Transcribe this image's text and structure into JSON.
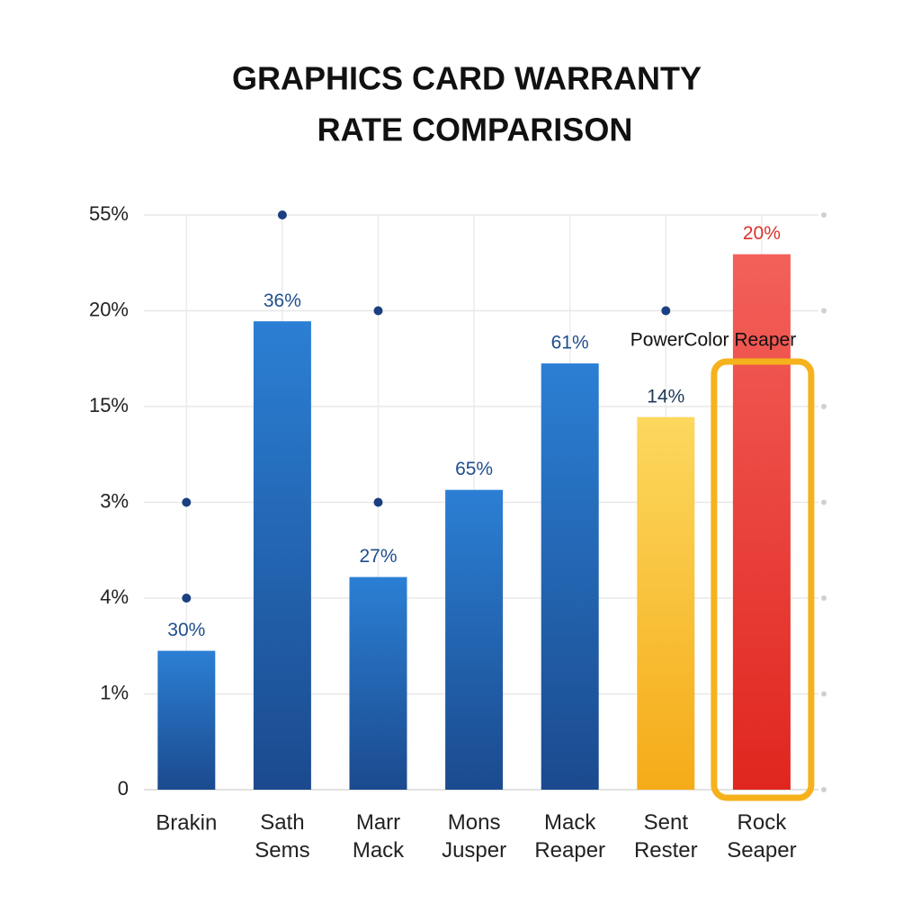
{
  "chart_data": {
    "type": "bar",
    "title": [
      "GRAPHICS CARD WARRANTY",
      "RATE COMPARISON"
    ],
    "categories": [
      "Brakin",
      "Sath Sems",
      "Marr Mack",
      "Mons Jusper",
      "Mack Reaper",
      "Sent Rester",
      "Rock Seaper"
    ],
    "values": [
      1.45,
      4.89,
      2.22,
      3.13,
      4.45,
      3.89,
      5.59
    ],
    "bar_labels": [
      "30%",
      "36%",
      "27%",
      "65%",
      "61%",
      "14%",
      "20%"
    ],
    "colors": [
      [
        "#2b7fd4",
        "#1b4a8e"
      ],
      [
        "#2b7fd4",
        "#1b4a8e"
      ],
      [
        "#2b7fd4",
        "#1b4a8e"
      ],
      [
        "#2b7fd4",
        "#1b4a8e"
      ],
      [
        "#2b7fd4",
        "#1b4a8e"
      ],
      [
        "#fcd85e",
        "#f5ab18"
      ],
      [
        "#f3605a",
        "#e0261f"
      ]
    ],
    "label_colors": [
      "#1f4e8c",
      "#1f4e8c",
      "#1f4e8c",
      "#1f4e8c",
      "#1f4e8c",
      "#1f3a5a",
      "#d9322b"
    ],
    "points": [
      [
        3,
        6,
        5,
        null,
        null,
        5,
        null
      ],
      [
        2,
        null,
        3,
        null,
        null,
        null,
        null
      ]
    ],
    "point_color": "#1b3f80",
    "ylim": [
      0,
      6
    ],
    "yticks": [
      {
        "value": 0,
        "label": "0"
      },
      {
        "value": 1,
        "label": "1%"
      },
      {
        "value": 2,
        "label": "4%"
      },
      {
        "value": 3,
        "label": "3%"
      },
      {
        "value": 4,
        "label": "15%"
      },
      {
        "value": 5,
        "label": "20%"
      },
      {
        "value": 6,
        "label": "55%"
      }
    ],
    "grid": true,
    "highlight": 6,
    "highlight_color": "#f5b21c",
    "annotation": "PowerColor Reaper"
  }
}
